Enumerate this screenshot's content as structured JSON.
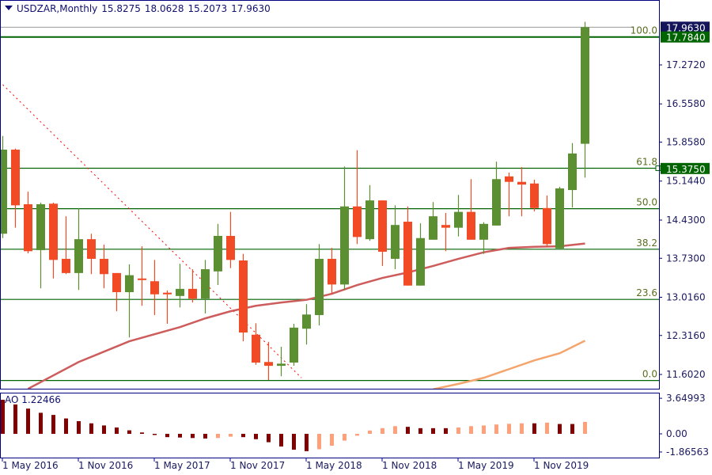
{
  "header": {
    "symbol_timeframe": "USDZAR,Monthly",
    "open": "15.8275",
    "high": "18.0628",
    "low": "15.2073",
    "close": "17.9630"
  },
  "indicator": {
    "name": "AO",
    "value": "1.22466",
    "axis_labels": [
      "3.64993",
      "0.00",
      "-1.86563"
    ],
    "max": 3.64993,
    "min": -1.86563
  },
  "colors": {
    "bull": "#5b8f31",
    "bear": "#f24a24",
    "fib": "#006400",
    "ma_slow": "#cd5c5c",
    "ma_fast": "#f4a46c",
    "trendline": "#ff0000",
    "ao_up": "#ffa07a",
    "ao_down": "#800000",
    "axis": "#000080",
    "last_price_bg": "#14145a",
    "level_bg": "#006400"
  },
  "price_axis": {
    "ticks": [
      "17.2720",
      "16.5580",
      "15.8580",
      "15.1440",
      "14.4300",
      "13.7300",
      "13.0160",
      "12.3160",
      "11.6020"
    ],
    "badges": [
      {
        "label": "17.9630",
        "price": 17.963,
        "kind": "last"
      },
      {
        "label": "17.7840",
        "price": 17.784,
        "kind": "level"
      },
      {
        "label": "15.3750",
        "price": 15.375,
        "kind": "level"
      }
    ]
  },
  "time_axis": {
    "labels": [
      {
        "text": "1 May 2016",
        "bar": 1
      },
      {
        "text": "1 Nov 2016",
        "bar": 7
      },
      {
        "text": "1 May 2017",
        "bar": 13
      },
      {
        "text": "1 Nov 2017",
        "bar": 19
      },
      {
        "text": "1 May 2018",
        "bar": 25
      },
      {
        "text": "1 Nov 2018",
        "bar": 31
      },
      {
        "text": "1 May 2019",
        "bar": 37
      },
      {
        "text": "1 Nov 2019",
        "bar": 43
      }
    ]
  },
  "fibonacci": [
    {
      "label": "100.0",
      "price": 17.784
    },
    {
      "label": "61.8",
      "price": 15.38
    },
    {
      "label": "50.0",
      "price": 14.638
    },
    {
      "label": "38.2",
      "price": 13.896
    },
    {
      "label": "23.6",
      "price": 12.977
    },
    {
      "label": "0.0",
      "price": 11.492
    }
  ],
  "trendline": {
    "bar1": 1,
    "price1": 16.91,
    "bar2": 24.6,
    "price2": 11.54
  },
  "chart_data": {
    "type": "candlestick",
    "ohlc": [
      [
        14.18,
        15.97,
        14.1,
        15.72
      ],
      [
        15.72,
        15.74,
        14.29,
        14.7
      ],
      [
        14.72,
        14.95,
        13.82,
        13.86
      ],
      [
        13.88,
        14.75,
        13.18,
        14.72
      ],
      [
        14.73,
        14.75,
        13.36,
        13.7
      ],
      [
        13.72,
        14.5,
        13.44,
        13.46
      ],
      [
        13.46,
        14.65,
        13.15,
        14.08
      ],
      [
        14.08,
        14.18,
        13.44,
        13.72
      ],
      [
        13.72,
        13.98,
        13.18,
        13.44
      ],
      [
        13.46,
        13.46,
        12.76,
        13.11
      ],
      [
        13.11,
        13.62,
        12.28,
        13.42
      ],
      [
        13.36,
        13.95,
        12.86,
        13.34
      ],
      [
        13.31,
        13.7,
        12.69,
        13.07
      ],
      [
        13.1,
        13.14,
        12.53,
        13.07
      ],
      [
        13.04,
        13.63,
        12.83,
        13.17
      ],
      [
        13.17,
        13.53,
        12.92,
        12.99
      ],
      [
        12.99,
        13.7,
        12.72,
        13.53
      ],
      [
        13.49,
        14.36,
        13.24,
        14.14
      ],
      [
        14.14,
        14.58,
        13.55,
        13.7
      ],
      [
        13.69,
        13.81,
        12.21,
        12.37
      ],
      [
        12.33,
        12.54,
        11.78,
        11.82
      ],
      [
        11.83,
        12.2,
        11.5,
        11.76
      ],
      [
        11.76,
        12.11,
        11.57,
        11.8
      ],
      [
        11.82,
        12.53,
        11.76,
        12.46
      ],
      [
        12.44,
        12.89,
        12.15,
        12.7
      ],
      [
        12.69,
        13.99,
        12.5,
        13.72
      ],
      [
        13.72,
        13.92,
        13.07,
        13.25
      ],
      [
        13.25,
        15.41,
        13.15,
        14.68
      ],
      [
        14.68,
        15.71,
        13.99,
        14.12
      ],
      [
        14.08,
        15.07,
        14.05,
        14.79
      ],
      [
        14.79,
        14.79,
        13.59,
        13.85
      ],
      [
        13.72,
        14.7,
        13.53,
        14.34
      ],
      [
        14.4,
        14.68,
        13.23,
        13.23
      ],
      [
        13.23,
        14.37,
        13.23,
        14.1
      ],
      [
        14.07,
        14.76,
        14.07,
        14.5
      ],
      [
        14.34,
        14.56,
        13.86,
        14.29
      ],
      [
        14.29,
        14.89,
        14.13,
        14.58
      ],
      [
        14.58,
        15.18,
        14.07,
        14.07
      ],
      [
        14.07,
        14.39,
        13.81,
        14.36
      ],
      [
        14.33,
        15.5,
        14.33,
        15.18
      ],
      [
        15.23,
        15.3,
        14.5,
        15.13
      ],
      [
        15.13,
        15.4,
        14.5,
        15.08
      ],
      [
        15.1,
        15.17,
        14.59,
        14.65
      ],
      [
        14.65,
        14.88,
        13.94,
        13.99
      ],
      [
        13.91,
        15.04,
        13.91,
        15.01
      ],
      [
        14.98,
        15.84,
        14.66,
        15.65
      ],
      [
        15.8275,
        18.0628,
        15.2073,
        17.963
      ]
    ],
    "ma_slow": [
      [
        3,
        11.34
      ],
      [
        7,
        11.83
      ],
      [
        11,
        12.21
      ],
      [
        15,
        12.47
      ],
      [
        17,
        12.63
      ],
      [
        19,
        12.76
      ],
      [
        21,
        12.86
      ],
      [
        23,
        12.92
      ],
      [
        25,
        12.97
      ],
      [
        27,
        13.08
      ],
      [
        29,
        13.24
      ],
      [
        31,
        13.37
      ],
      [
        33,
        13.47
      ],
      [
        35,
        13.59
      ],
      [
        37,
        13.72
      ],
      [
        39,
        13.84
      ],
      [
        41,
        13.92
      ],
      [
        43,
        13.94
      ],
      [
        45,
        13.95
      ],
      [
        47,
        14.0
      ]
    ],
    "ma_fast": [
      [
        35,
        11.33
      ],
      [
        37,
        11.43
      ],
      [
        39,
        11.54
      ],
      [
        41,
        11.7
      ],
      [
        43,
        11.86
      ],
      [
        45,
        11.99
      ],
      [
        47,
        12.22
      ]
    ],
    "ao": [
      3.5,
      3.02,
      2.59,
      2.16,
      1.94,
      1.58,
      1.3,
      1.08,
      0.86,
      0.65,
      0.36,
      0.14,
      -0.12,
      -0.34,
      -0.38,
      -0.43,
      -0.48,
      -0.43,
      -0.29,
      -0.34,
      -0.55,
      -0.86,
      -1.3,
      -1.63,
      -1.78,
      -1.58,
      -1.22,
      -0.7,
      -0.19,
      0.34,
      0.58,
      0.79,
      0.72,
      0.58,
      0.58,
      0.58,
      0.65,
      0.79,
      0.86,
      0.96,
      1.03,
      1.08,
      1.08,
      1.15,
      1.01,
      1.01,
      1.22466
    ]
  }
}
